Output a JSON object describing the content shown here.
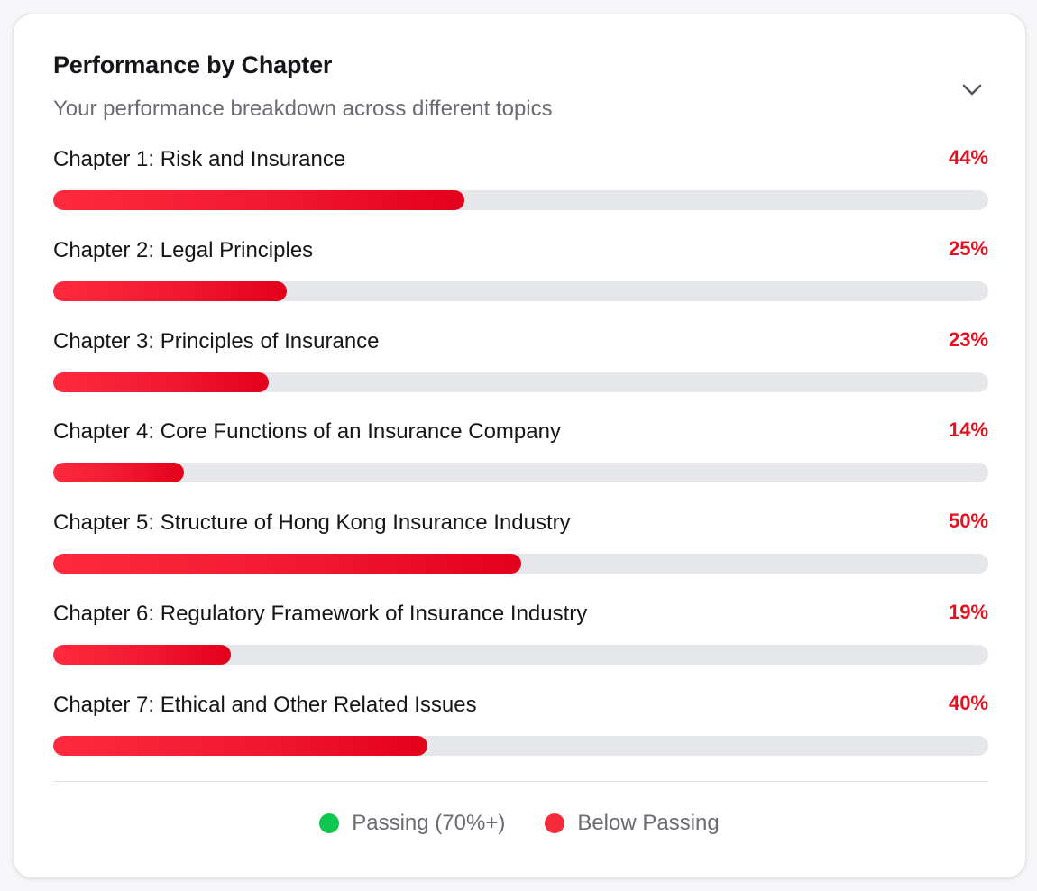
{
  "header": {
    "title": "Performance by Chapter",
    "subtitle": "Your performance breakdown across different topics"
  },
  "chapters": [
    {
      "name": "Chapter 1: Risk and Insurance",
      "score_label": "44%",
      "score": 44
    },
    {
      "name": "Chapter 2: Legal Principles",
      "score_label": "25%",
      "score": 25
    },
    {
      "name": "Chapter 3: Principles of Insurance",
      "score_label": "23%",
      "score": 23
    },
    {
      "name": "Chapter 4: Core Functions of an Insurance Company",
      "score_label": "14%",
      "score": 14
    },
    {
      "name": "Chapter 5: Structure of Hong Kong Insurance Industry",
      "score_label": "50%",
      "score": 50
    },
    {
      "name": "Chapter 6: Regulatory Framework of Insurance Industry",
      "score_label": "19%",
      "score": 19
    },
    {
      "name": "Chapter 7: Ethical and Other Related Issues",
      "score_label": "40%",
      "score": 40
    }
  ],
  "legend": {
    "passing_label": "Passing (70%+)",
    "below_label": "Below Passing"
  },
  "colors": {
    "passing": "#0fc74f",
    "below": "#f52a3a",
    "score_text": "#e8101f"
  },
  "icons": {
    "toggle": "chevron-down-icon"
  }
}
